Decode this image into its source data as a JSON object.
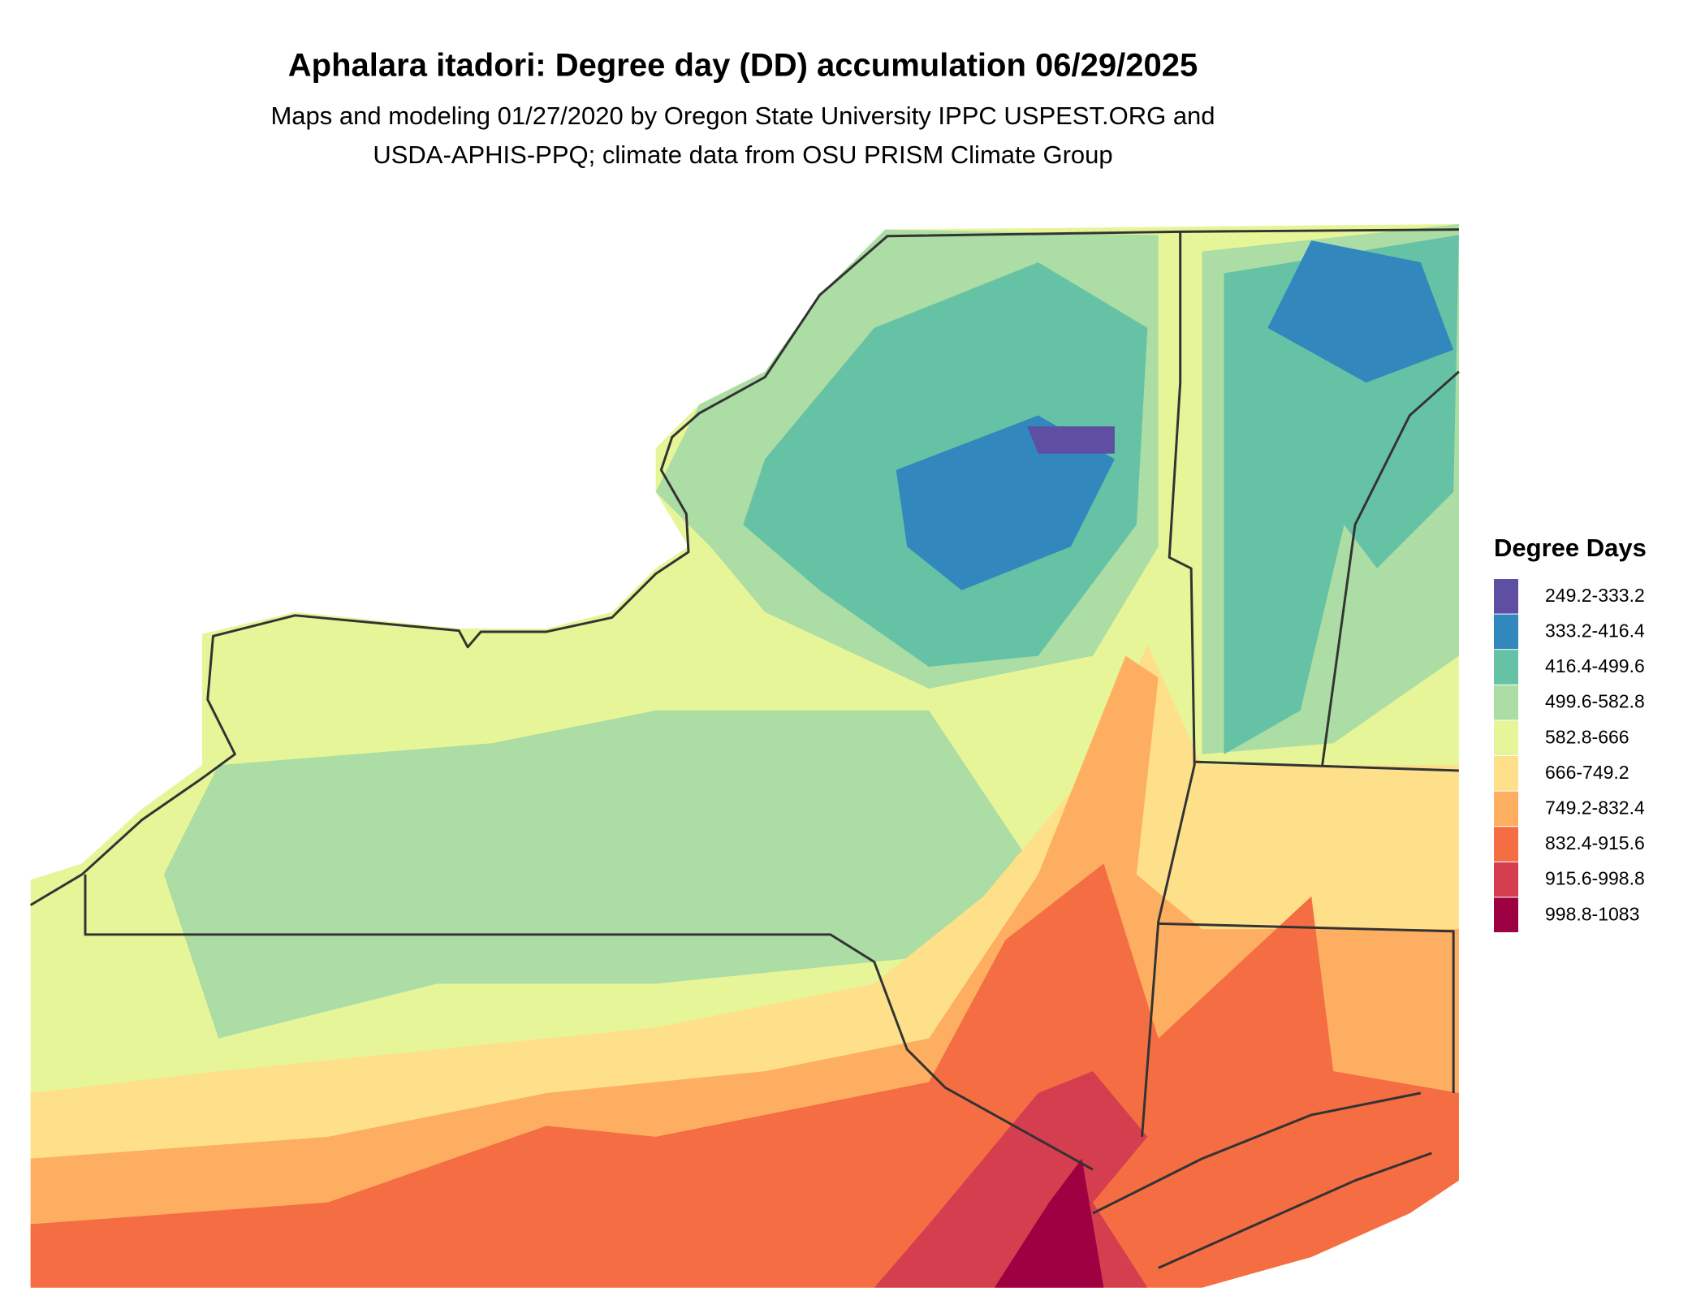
{
  "header": {
    "title": "Aphalara itadori: Degree day (DD) accumulation 06/29/2025",
    "subtitle_lines": [
      "Maps and modeling 01/27/2020 by Oregon State University IPPC USPEST.ORG and",
      "USDA-APHIS-PPQ; climate data from OSU PRISM Climate Group"
    ]
  },
  "legend": {
    "title": "Degree Days",
    "items": [
      {
        "label": "249.2-333.2",
        "color": "#5e4fa2"
      },
      {
        "label": "333.2-416.4",
        "color": "#3288bd"
      },
      {
        "label": "416.4-499.6",
        "color": "#66c2a5"
      },
      {
        "label": "499.6-582.8",
        "color": "#abdda4"
      },
      {
        "label": "582.8-666",
        "color": "#e6f598"
      },
      {
        "label": "666-749.2",
        "color": "#fee08b"
      },
      {
        "label": "749.2-832.4",
        "color": "#fdae61"
      },
      {
        "label": "832.4-915.6",
        "color": "#f46d43"
      },
      {
        "label": "915.6-998.8",
        "color": "#d53e4f"
      },
      {
        "label": "998.8-1083",
        "color": "#9e0142"
      }
    ]
  }
}
